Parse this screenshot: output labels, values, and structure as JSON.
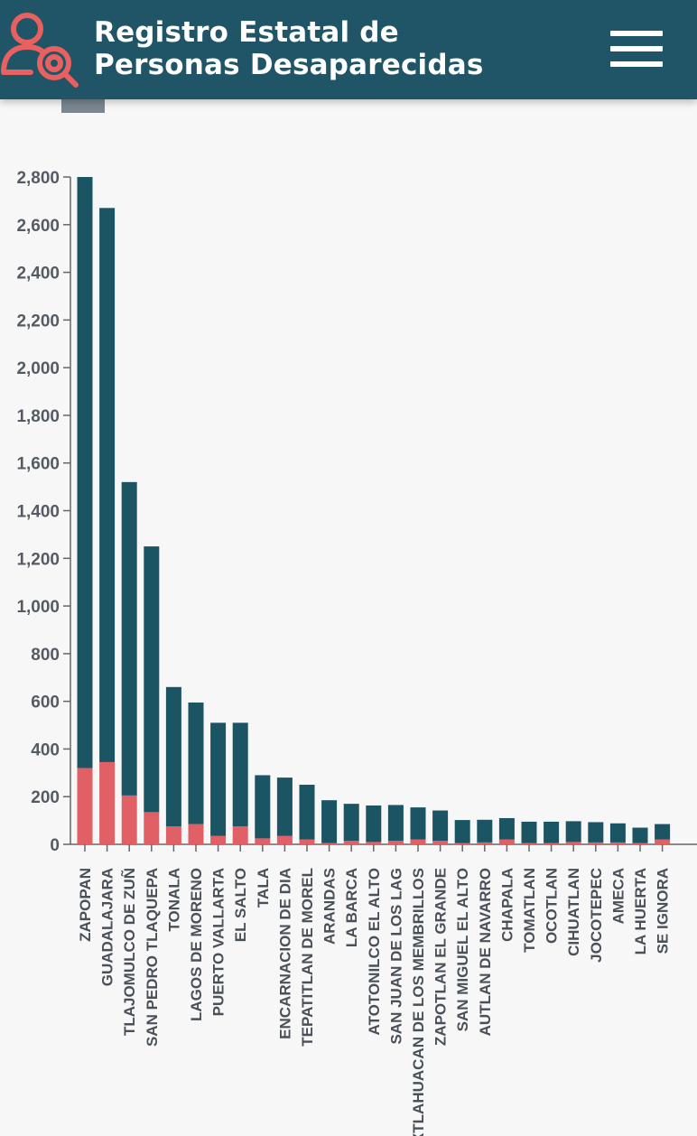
{
  "header": {
    "title_line1": "Registro Estatal de",
    "title_line2": "Personas Desaparecidas"
  },
  "colors": {
    "header_bg": "#1f5566",
    "series_main": "#1b5564",
    "series_secondary": "#e06065",
    "logo": "#e8605f",
    "legend_swatch": "#7a8791"
  },
  "chart_data": {
    "type": "bar",
    "stacked": true,
    "ylim": [
      0,
      2800
    ],
    "yticks": [
      0,
      200,
      400,
      600,
      800,
      1000,
      1200,
      1400,
      1600,
      1800,
      2000,
      2200,
      2400,
      2600,
      2800
    ],
    "ytick_labels": [
      "0",
      "200",
      "400",
      "600",
      "800",
      "1,000",
      "1,200",
      "1,400",
      "1,600",
      "1,800",
      "2,000",
      "2,200",
      "2,400",
      "2,600",
      "2,800"
    ],
    "grid": false,
    "categories": [
      "ZAPOPAN",
      "GUADALAJARA",
      "TLAJOMULCO DE ZUÑ",
      "SAN PEDRO TLAQUEPA",
      "TONALA",
      "LAGOS DE MORENO",
      "PUERTO VALLARTA",
      "EL SALTO",
      "TALA",
      "ENCARNACION DE DIA",
      "TEPATITLAN DE MOREL",
      "ARANDAS",
      "LA BARCA",
      "ATOTONILCO EL ALTO",
      "SAN JUAN DE LOS LAG",
      "IXTLAHUACAN DE LOS MEMBRILLOS",
      "ZAPOTLAN EL GRANDE",
      "SAN MIGUEL EL ALTO",
      "AUTLAN DE NAVARRO",
      "CHAPALA",
      "TOMATLAN",
      "OCOTLAN",
      "CIHUATLAN",
      "JOCOTEPEC",
      "AMECA",
      "LA HUERTA",
      "SE IGNORA"
    ],
    "series": [
      {
        "values": [
          320,
          345,
          205,
          135,
          75,
          85,
          35,
          75,
          25,
          35,
          20,
          5,
          15,
          10,
          15,
          20,
          15,
          5,
          8,
          20,
          5,
          5,
          10,
          8,
          8,
          5,
          20
        ]
      },
      {
        "values": [
          2480,
          2325,
          1315,
          1115,
          585,
          510,
          475,
          435,
          265,
          245,
          230,
          180,
          155,
          153,
          150,
          135,
          127,
          97,
          95,
          90,
          90,
          90,
          87,
          85,
          80,
          65,
          65
        ]
      }
    ]
  }
}
